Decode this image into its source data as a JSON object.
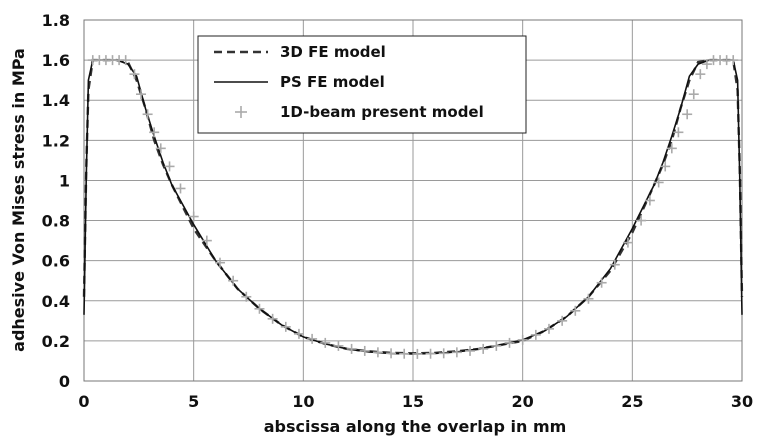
{
  "chart_data": {
    "type": "line",
    "title": "",
    "xlabel": "abscissa along the overlap in mm",
    "ylabel": "adhesive Von Mises stress in MPa",
    "xlim": [
      0,
      30
    ],
    "ylim": [
      0,
      1.8
    ],
    "xticks": [
      "0",
      "5",
      "10",
      "15",
      "20",
      "25",
      "30"
    ],
    "yticks": [
      "0",
      "0.2",
      "0.4",
      "0.6",
      "0.8",
      "1",
      "1.2",
      "1.4",
      "1.6",
      "1.8"
    ],
    "grid": true,
    "legend_position": "top-center",
    "series": [
      {
        "name": "3D FE model",
        "style": "dashed",
        "color": "#333333",
        "x": [
          0,
          0.1,
          0.2,
          0.4,
          0.8,
          1.5,
          2.0,
          2.4,
          2.8,
          3.2,
          3.6,
          4.0,
          5.0,
          6.0,
          7.0,
          8.0,
          9.0,
          10.0,
          11.0,
          12.0,
          13.0,
          14.0,
          15.0,
          16.0,
          17.0,
          18.0,
          19.0,
          20.0,
          21.0,
          22.0,
          23.0,
          24.0,
          25.0,
          26.0,
          26.4,
          26.8,
          27.2,
          27.6,
          28.0,
          28.5,
          29.2,
          29.6,
          29.8,
          29.9,
          30.0
        ],
        "y": [
          0.42,
          1.05,
          1.45,
          1.6,
          1.6,
          1.6,
          1.59,
          1.5,
          1.36,
          1.2,
          1.08,
          0.98,
          0.76,
          0.6,
          0.46,
          0.36,
          0.28,
          0.22,
          0.185,
          0.16,
          0.148,
          0.14,
          0.138,
          0.14,
          0.148,
          0.16,
          0.18,
          0.2,
          0.25,
          0.32,
          0.42,
          0.55,
          0.74,
          0.98,
          1.08,
          1.2,
          1.36,
          1.5,
          1.59,
          1.6,
          1.6,
          1.6,
          1.45,
          1.05,
          0.42
        ]
      },
      {
        "name": "PS FE model",
        "style": "solid",
        "color": "#111111",
        "x": [
          0,
          0.1,
          0.2,
          0.4,
          0.8,
          1.5,
          2.0,
          2.4,
          2.8,
          3.2,
          3.6,
          4.0,
          5.0,
          6.0,
          7.0,
          8.0,
          9.0,
          10.0,
          11.0,
          12.0,
          13.0,
          14.0,
          15.0,
          16.0,
          17.0,
          18.0,
          19.0,
          20.0,
          21.0,
          22.0,
          23.0,
          24.0,
          25.0,
          26.0,
          26.4,
          26.8,
          27.2,
          27.6,
          28.0,
          28.5,
          29.2,
          29.6,
          29.8,
          29.9,
          30.0
        ],
        "y": [
          0.33,
          1.0,
          1.5,
          1.6,
          1.6,
          1.6,
          1.58,
          1.52,
          1.36,
          1.22,
          1.09,
          0.98,
          0.78,
          0.6,
          0.46,
          0.36,
          0.28,
          0.22,
          0.185,
          0.16,
          0.145,
          0.137,
          0.135,
          0.137,
          0.145,
          0.16,
          0.18,
          0.205,
          0.25,
          0.32,
          0.42,
          0.56,
          0.76,
          0.98,
          1.09,
          1.22,
          1.36,
          1.52,
          1.58,
          1.6,
          1.6,
          1.6,
          1.5,
          1.0,
          0.33
        ]
      },
      {
        "name": "1D-beam present model",
        "style": "markers",
        "color": "#aaaaaa",
        "x": [
          0.4,
          0.7,
          1.0,
          1.3,
          1.6,
          1.9,
          2.3,
          2.6,
          2.9,
          3.2,
          3.5,
          3.9,
          4.4,
          5.0,
          5.6,
          6.2,
          6.8,
          7.4,
          8.0,
          8.6,
          9.2,
          9.8,
          10.4,
          11.0,
          11.6,
          12.2,
          12.8,
          13.4,
          14.0,
          14.6,
          15.2,
          15.8,
          16.4,
          17.0,
          17.6,
          18.2,
          18.8,
          19.4,
          20.0,
          20.6,
          21.2,
          21.8,
          22.4,
          23.0,
          23.6,
          24.2,
          24.8,
          25.4,
          25.8,
          26.2,
          26.5,
          26.8,
          27.1,
          27.5,
          27.8,
          28.1,
          28.4,
          28.7,
          29.0,
          29.3,
          29.6
        ],
        "y": [
          1.6,
          1.6,
          1.6,
          1.6,
          1.6,
          1.6,
          1.53,
          1.43,
          1.33,
          1.24,
          1.16,
          1.07,
          0.96,
          0.82,
          0.7,
          0.59,
          0.5,
          0.42,
          0.36,
          0.31,
          0.27,
          0.235,
          0.21,
          0.19,
          0.175,
          0.16,
          0.15,
          0.143,
          0.138,
          0.136,
          0.135,
          0.136,
          0.138,
          0.143,
          0.15,
          0.16,
          0.175,
          0.19,
          0.205,
          0.23,
          0.26,
          0.3,
          0.35,
          0.41,
          0.49,
          0.58,
          0.69,
          0.8,
          0.9,
          0.99,
          1.07,
          1.16,
          1.24,
          1.33,
          1.43,
          1.53,
          1.58,
          1.6,
          1.6,
          1.6,
          1.6
        ]
      }
    ]
  }
}
